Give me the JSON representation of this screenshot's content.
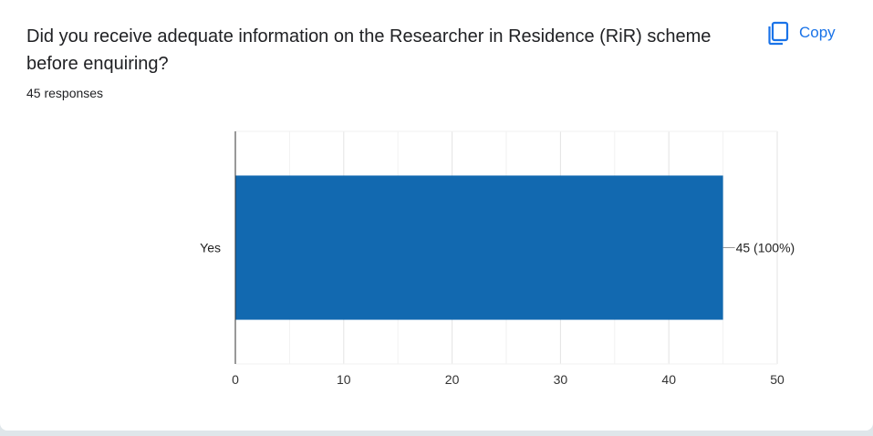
{
  "question": {
    "title": "Did you receive adequate information on the Researcher in Residence (RiR) scheme before enquiring?",
    "responses": "45 responses"
  },
  "toolbar": {
    "copy_label": "Copy",
    "copy_icon": "copy-icon"
  },
  "colors": {
    "bar": "#1269b0",
    "accent": "#1a73e8"
  },
  "chart_data": {
    "type": "bar",
    "orientation": "horizontal",
    "categories": [
      "Yes"
    ],
    "values": [
      45
    ],
    "data_labels": [
      "45 (100%)"
    ],
    "xlim": [
      0,
      50
    ],
    "xticks": [
      0,
      10,
      20,
      30,
      40,
      50
    ],
    "grid": true,
    "legend": "none",
    "title": "",
    "xlabel": "",
    "ylabel": ""
  }
}
